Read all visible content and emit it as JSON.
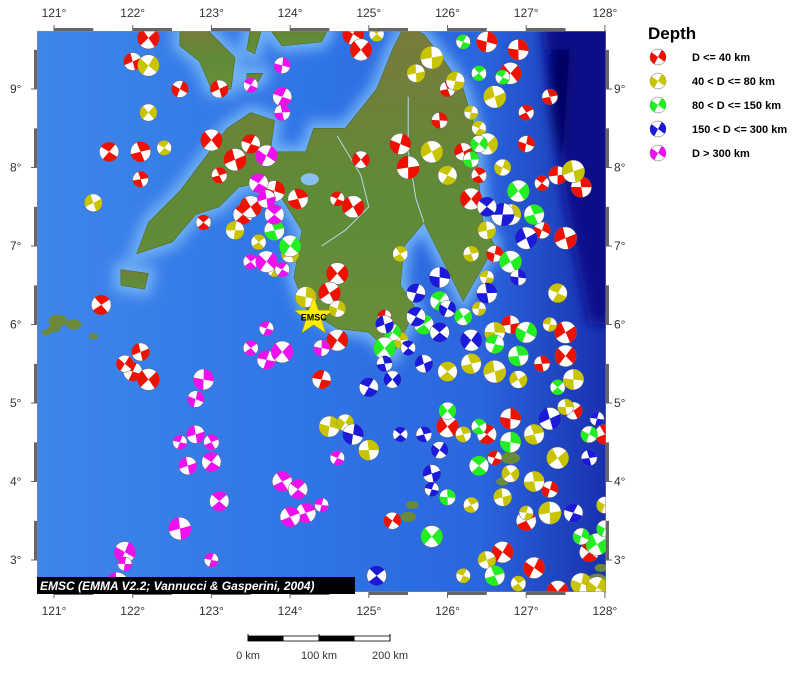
{
  "map": {
    "lon_range": [
      120.78,
      128.0
    ],
    "lat_range": [
      2.6,
      9.74
    ],
    "lon_ticks": [
      121,
      122,
      123,
      124,
      125,
      126,
      127,
      128
    ],
    "lat_ticks": [
      3,
      4,
      5,
      6,
      7,
      8,
      9
    ],
    "degree_symbol": "°",
    "attribution": "EMSC (EMMA V2.2; Vannucci & Gasperini, 2004)",
    "star": {
      "label": "EMSC",
      "lon": 124.3,
      "lat": 6.1,
      "color": "#ffee00"
    }
  },
  "legend": {
    "title": "Depth",
    "items": [
      {
        "label": "D <= 40 km",
        "color": "#ee1100"
      },
      {
        "label": "40 < D <= 80 km",
        "color": "#c8c400"
      },
      {
        "label": "80 < D <= 150 km",
        "color": "#22ee22"
      },
      {
        "label": "150 < D <= 300 km",
        "color": "#1a1ad8"
      },
      {
        "label": "D > 300 km",
        "color": "#ee11ee"
      }
    ]
  },
  "scale_bar": {
    "labels": [
      "0 km",
      "100 km",
      "200 km"
    ]
  },
  "events": {
    "class0": [
      [
        122.2,
        9.65
      ],
      [
        122.0,
        9.35
      ],
      [
        122.6,
        9.0
      ],
      [
        123.1,
        9.0
      ],
      [
        121.7,
        8.2
      ],
      [
        122.1,
        8.2
      ],
      [
        122.1,
        7.85
      ],
      [
        123.0,
        8.35
      ],
      [
        123.3,
        8.1
      ],
      [
        123.1,
        7.9
      ],
      [
        123.5,
        8.3
      ],
      [
        122.9,
        7.3
      ],
      [
        123.4,
        7.4
      ],
      [
        123.5,
        7.5
      ],
      [
        123.8,
        7.7
      ],
      [
        124.1,
        7.6
      ],
      [
        124.6,
        7.6
      ],
      [
        124.8,
        7.5
      ],
      [
        124.9,
        8.1
      ],
      [
        125.4,
        8.3
      ],
      [
        125.5,
        8.0
      ],
      [
        124.6,
        6.65
      ],
      [
        124.5,
        6.4
      ],
      [
        124.3,
        6.1
      ],
      [
        124.6,
        5.8
      ],
      [
        124.4,
        5.3
      ],
      [
        122.0,
        5.4
      ],
      [
        122.2,
        5.3
      ],
      [
        122.1,
        5.65
      ],
      [
        121.9,
        5.5
      ],
      [
        125.2,
        6.1
      ],
      [
        124.8,
        9.7
      ],
      [
        125.9,
        8.6
      ],
      [
        126.2,
        8.2
      ],
      [
        126.4,
        7.9
      ],
      [
        126.3,
        7.6
      ],
      [
        126.5,
        9.6
      ],
      [
        126.9,
        9.5
      ],
      [
        126.8,
        9.2
      ],
      [
        127.0,
        8.7
      ],
      [
        127.3,
        8.9
      ],
      [
        127.0,
        8.3
      ],
      [
        127.2,
        7.8
      ],
      [
        127.4,
        7.9
      ],
      [
        127.7,
        7.75
      ],
      [
        127.2,
        7.2
      ],
      [
        127.5,
        7.1
      ],
      [
        126.6,
        6.9
      ],
      [
        126.8,
        6.0
      ],
      [
        127.5,
        5.9
      ],
      [
        127.5,
        5.6
      ],
      [
        127.2,
        5.5
      ],
      [
        126.8,
        4.8
      ],
      [
        127.6,
        4.9
      ],
      [
        126.0,
        4.7
      ],
      [
        126.5,
        4.6
      ],
      [
        126.6,
        4.3
      ],
      [
        127.0,
        3.5
      ],
      [
        127.3,
        3.9
      ],
      [
        126.7,
        3.1
      ],
      [
        127.1,
        2.9
      ],
      [
        127.4,
        2.6
      ],
      [
        127.8,
        3.1
      ],
      [
        125.3,
        3.5
      ],
      [
        124.9,
        9.5
      ],
      [
        126.0,
        9.0
      ],
      [
        121.6,
        6.25
      ],
      [
        128.0,
        4.6
      ]
    ],
    "class1": [
      [
        122.2,
        9.3
      ],
      [
        122.2,
        8.7
      ],
      [
        122.4,
        8.25
      ],
      [
        121.5,
        7.55
      ],
      [
        123.3,
        7.2
      ],
      [
        123.6,
        7.05
      ],
      [
        123.8,
        6.7
      ],
      [
        124.0,
        6.9
      ],
      [
        124.2,
        6.35
      ],
      [
        125.1,
        9.7
      ],
      [
        125.6,
        9.2
      ],
      [
        125.8,
        9.4
      ],
      [
        126.1,
        9.1
      ],
      [
        126.3,
        8.7
      ],
      [
        126.4,
        8.5
      ],
      [
        126.6,
        8.9
      ],
      [
        126.5,
        8.3
      ],
      [
        126.7,
        8.0
      ],
      [
        125.8,
        8.2
      ],
      [
        126.0,
        7.9
      ],
      [
        126.5,
        7.2
      ],
      [
        126.8,
        7.4
      ],
      [
        126.3,
        6.9
      ],
      [
        125.4,
        6.9
      ],
      [
        126.5,
        6.6
      ],
      [
        126.4,
        6.2
      ],
      [
        126.6,
        5.9
      ],
      [
        126.3,
        5.5
      ],
      [
        126.6,
        5.4
      ],
      [
        126.9,
        5.3
      ],
      [
        126.0,
        5.4
      ],
      [
        125.4,
        5.8
      ],
      [
        127.4,
        6.4
      ],
      [
        127.3,
        6.0
      ],
      [
        127.6,
        5.3
      ],
      [
        127.5,
        4.95
      ],
      [
        127.1,
        4.6
      ],
      [
        126.8,
        4.1
      ],
      [
        126.2,
        4.6
      ],
      [
        126.7,
        3.8
      ],
      [
        126.3,
        3.7
      ],
      [
        127.0,
        3.6
      ],
      [
        127.3,
        3.6
      ],
      [
        126.5,
        3.0
      ],
      [
        126.2,
        2.8
      ],
      [
        126.9,
        2.7
      ],
      [
        127.7,
        2.7
      ],
      [
        127.9,
        2.65
      ],
      [
        127.4,
        4.3
      ],
      [
        124.5,
        4.7
      ],
      [
        124.7,
        4.75
      ],
      [
        125.0,
        4.4
      ],
      [
        124.6,
        6.2
      ],
      [
        127.6,
        7.95
      ],
      [
        128.0,
        3.7
      ],
      [
        127.1,
        4.0
      ]
    ],
    "class2": [
      [
        126.2,
        9.6
      ],
      [
        126.4,
        9.2
      ],
      [
        126.7,
        9.15
      ],
      [
        126.4,
        8.3
      ],
      [
        126.9,
        7.7
      ],
      [
        127.1,
        7.4
      ],
      [
        126.8,
        6.8
      ],
      [
        125.9,
        6.3
      ],
      [
        125.7,
        6.0
      ],
      [
        125.3,
        5.9
      ],
      [
        126.2,
        6.1
      ],
      [
        126.6,
        5.75
      ],
      [
        126.9,
        5.6
      ],
      [
        127.0,
        5.9
      ],
      [
        127.4,
        5.2
      ],
      [
        127.8,
        4.6
      ],
      [
        126.4,
        4.7
      ],
      [
        126.8,
        4.5
      ],
      [
        126.4,
        4.2
      ],
      [
        126.0,
        3.8
      ],
      [
        125.8,
        3.3
      ],
      [
        126.6,
        2.8
      ],
      [
        127.9,
        3.2
      ],
      [
        128.0,
        3.4
      ],
      [
        123.8,
        7.2
      ],
      [
        124.0,
        7.0
      ],
      [
        126.0,
        4.9
      ],
      [
        127.7,
        3.3
      ],
      [
        125.2,
        5.7
      ],
      [
        126.3,
        8.1
      ]
    ],
    "class3": [
      [
        125.9,
        6.6
      ],
      [
        125.6,
        6.4
      ],
      [
        126.0,
        6.2
      ],
      [
        125.6,
        6.1
      ],
      [
        125.2,
        6.0
      ],
      [
        125.5,
        5.7
      ],
      [
        125.2,
        5.5
      ],
      [
        125.0,
        5.2
      ],
      [
        125.7,
        5.5
      ],
      [
        125.9,
        5.9
      ],
      [
        126.3,
        5.8
      ],
      [
        126.5,
        6.4
      ],
      [
        126.9,
        6.6
      ],
      [
        126.7,
        7.4
      ],
      [
        127.0,
        7.1
      ],
      [
        125.3,
        5.3
      ],
      [
        125.7,
        4.6
      ],
      [
        125.8,
        4.1
      ],
      [
        125.8,
        3.9
      ],
      [
        125.9,
        4.4
      ],
      [
        125.4,
        4.6
      ],
      [
        124.8,
        4.6
      ],
      [
        125.1,
        2.8
      ],
      [
        127.6,
        3.6
      ],
      [
        127.9,
        4.8
      ],
      [
        127.8,
        4.3
      ],
      [
        126.5,
        7.5
      ],
      [
        127.3,
        4.8
      ]
    ],
    "class4": [
      [
        123.5,
        9.05
      ],
      [
        123.9,
        9.3
      ],
      [
        123.9,
        8.9
      ],
      [
        123.9,
        8.7
      ],
      [
        123.7,
        8.15
      ],
      [
        123.6,
        7.8
      ],
      [
        123.7,
        7.6
      ],
      [
        123.8,
        7.4
      ],
      [
        123.5,
        6.8
      ],
      [
        123.7,
        6.8
      ],
      [
        123.9,
        6.7
      ],
      [
        123.7,
        5.95
      ],
      [
        123.5,
        5.7
      ],
      [
        123.7,
        5.55
      ],
      [
        123.9,
        5.65
      ],
      [
        124.4,
        5.7
      ],
      [
        122.9,
        5.3
      ],
      [
        122.8,
        5.05
      ],
      [
        122.6,
        4.5
      ],
      [
        122.8,
        4.6
      ],
      [
        123.0,
        4.5
      ],
      [
        122.7,
        4.2
      ],
      [
        123.0,
        4.25
      ],
      [
        123.1,
        3.75
      ],
      [
        123.9,
        4.0
      ],
      [
        124.1,
        3.9
      ],
      [
        124.2,
        3.6
      ],
      [
        124.0,
        3.55
      ],
      [
        124.6,
        4.3
      ],
      [
        124.4,
        3.7
      ],
      [
        123.0,
        3.0
      ],
      [
        122.6,
        3.4
      ],
      [
        121.9,
        3.1
      ],
      [
        121.9,
        2.95
      ],
      [
        121.8,
        2.7
      ]
    ]
  }
}
